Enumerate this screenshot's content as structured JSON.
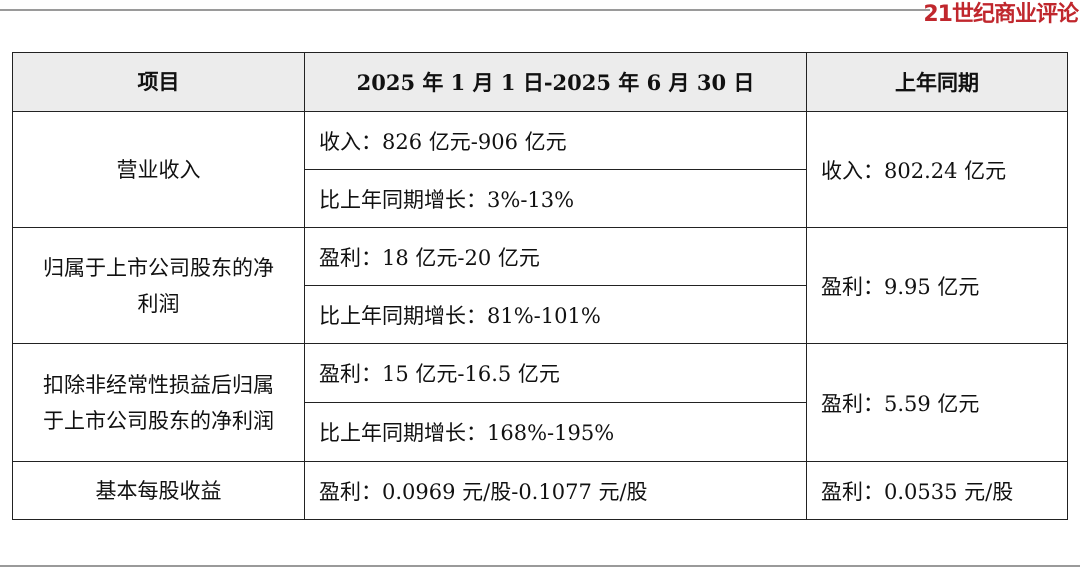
{
  "logo": "21世纪商业评论",
  "headers": [
    "项目",
    "2025 年 1 月 1 日-2025 年 6 月 30 日",
    "上年同期"
  ],
  "rows": [
    {
      "item": "营业收入",
      "current": [
        "收入：826 亿元-906 亿元",
        "比上年同期增长：3%-13%"
      ],
      "prior": "收入：802.24 亿元"
    },
    {
      "item": "归属于上市公司股东的净利润",
      "current": [
        "盈利：18 亿元-20 亿元",
        "比上年同期增长：81%-101%"
      ],
      "prior": "盈利：9.95 亿元"
    },
    {
      "item": "扣除非经常性损益后归属于上市公司股东的净利润",
      "current": [
        "盈利：15 亿元-16.5 亿元",
        "比上年同期增长：168%-195%"
      ],
      "prior": "盈利：5.59 亿元"
    },
    {
      "item": "基本每股收益",
      "current": [
        "盈利：0.0969 元/股-0.1077 元/股"
      ],
      "prior": "盈利：0.0535 元/股"
    }
  ]
}
